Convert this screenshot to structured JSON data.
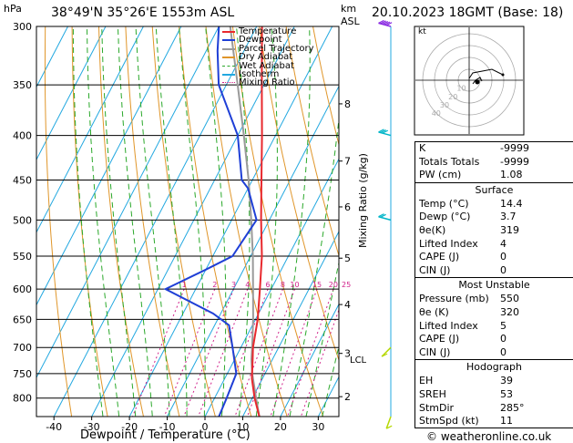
{
  "header": {
    "pressure_unit": "hPa",
    "location": "38°49'N  35°26'E  1553m  ASL",
    "height_unit_top": "km",
    "height_unit_bottom": "ASL",
    "datetime": "20.10.2023  18GMT  (Base: 18)"
  },
  "chart_data": {
    "type": "skew-T log-P sounding",
    "xlabel": "Dewpoint / Temperature (°C)",
    "mixing_ratio_label": "Mixing Ratio (g/kg)",
    "temperature_ticks": [
      -40,
      -30,
      -20,
      -10,
      0,
      10,
      20,
      30
    ],
    "xlim_at_bottom": [
      -45,
      35
    ],
    "pressure_levels": [
      300,
      350,
      400,
      450,
      500,
      550,
      600,
      650,
      700,
      750,
      800
    ],
    "plim": [
      300,
      840
    ],
    "height_km_ticks": [
      {
        "label": "8",
        "p": 368
      },
      {
        "label": "7",
        "p": 428
      },
      {
        "label": "6",
        "p": 483
      },
      {
        "label": "5",
        "p": 553
      },
      {
        "label": "4",
        "p": 625
      },
      {
        "label": "3",
        "p": 711
      },
      {
        "label": "2",
        "p": 797
      }
    ],
    "lcl": {
      "label": "LCL",
      "p": 722
    },
    "mixing_ratio_lines": [
      "1",
      "2",
      "3",
      "4",
      "6",
      "8",
      "10",
      "15",
      "20",
      "25"
    ],
    "legend": [
      {
        "label": "Temperature",
        "color": "#e8282d"
      },
      {
        "label": "Dewpoint",
        "color": "#1f3fd6"
      },
      {
        "label": "Parcel Trajectory",
        "color": "#9a9a9a"
      },
      {
        "label": "Dry Adiabat",
        "color": "#e0962a"
      },
      {
        "label": "Wet Adiabat",
        "color": "#2aa82a"
      },
      {
        "label": "Isotherm",
        "color": "#22a8e0"
      },
      {
        "label": "Mixing Ratio",
        "color": "#d0208a"
      }
    ],
    "temperature_profile": [
      [
        840,
        14.4
      ],
      [
        800,
        10.6
      ],
      [
        760,
        7.2
      ],
      [
        720,
        4.6
      ],
      [
        700,
        3.2
      ],
      [
        650,
        0.6
      ],
      [
        600,
        -3.0
      ],
      [
        550,
        -7.0
      ],
      [
        500,
        -12.2
      ],
      [
        450,
        -17.6
      ],
      [
        400,
        -23.6
      ],
      [
        350,
        -30.6
      ],
      [
        300,
        -38.6
      ]
    ],
    "dewpoint_profile": [
      [
        840,
        3.7
      ],
      [
        800,
        3.2
      ],
      [
        750,
        2.4
      ],
      [
        700,
        -2.2
      ],
      [
        660,
        -6.2
      ],
      [
        640,
        -12.0
      ],
      [
        600,
        -28.0
      ],
      [
        570,
        -20.0
      ],
      [
        550,
        -14.8
      ],
      [
        500,
        -13.4
      ],
      [
        460,
        -20.0
      ],
      [
        450,
        -22.8
      ],
      [
        400,
        -30.0
      ],
      [
        350,
        -42.0
      ],
      [
        320,
        -47.0
      ],
      [
        300,
        -50.0
      ]
    ],
    "parcel_profile": [
      [
        840,
        14.4
      ],
      [
        800,
        11.0
      ],
      [
        750,
        6.6
      ],
      [
        722,
        4.4
      ],
      [
        700,
        3.0
      ],
      [
        650,
        -0.6
      ],
      [
        600,
        -4.8
      ],
      [
        550,
        -9.4
      ],
      [
        500,
        -14.8
      ],
      [
        450,
        -21.0
      ],
      [
        400,
        -28.4
      ],
      [
        350,
        -37.0
      ],
      [
        300,
        -47.0
      ]
    ],
    "wind_barbs": [
      {
        "p": 300,
        "dir": 285,
        "speed_kt": 60
      },
      {
        "p": 400,
        "dir": 285,
        "speed_kt": 25
      },
      {
        "p": 500,
        "dir": 285,
        "speed_kt": 20
      },
      {
        "p": 700,
        "dir": 225,
        "speed_kt": 10
      },
      {
        "p": 840,
        "dir": 200,
        "speed_kt": 5
      }
    ]
  },
  "hodograph": {
    "unit_label": "kt",
    "ring_labels": [
      "10",
      "20",
      "30",
      "40"
    ]
  },
  "indices": {
    "rows": [
      {
        "key": "K",
        "value": "-9999"
      },
      {
        "key": "Totals Totals",
        "value": "-9999"
      },
      {
        "key": "PW (cm)",
        "value": "1.08"
      }
    ]
  },
  "surface": {
    "title": "Surface",
    "rows": [
      {
        "key": "Temp (°C)",
        "value": "14.4"
      },
      {
        "key": "Dewp (°C)",
        "value": "3.7"
      },
      {
        "key": "θe(K)",
        "value": "319"
      },
      {
        "key": "Lifted Index",
        "value": "4"
      },
      {
        "key": "CAPE (J)",
        "value": "0"
      },
      {
        "key": "CIN (J)",
        "value": "0"
      }
    ]
  },
  "most_unstable": {
    "title": "Most Unstable",
    "rows": [
      {
        "key": "Pressure (mb)",
        "value": "550"
      },
      {
        "key": "θe (K)",
        "value": "320"
      },
      {
        "key": "Lifted Index",
        "value": "5"
      },
      {
        "key": "CAPE (J)",
        "value": "0"
      },
      {
        "key": "CIN (J)",
        "value": "0"
      }
    ]
  },
  "hodograph_table": {
    "title": "Hodograph",
    "rows": [
      {
        "key": "EH",
        "value": "39"
      },
      {
        "key": "SREH",
        "value": "53"
      },
      {
        "key": "StmDir",
        "value": "285°"
      },
      {
        "key": "StmSpd (kt)",
        "value": "11"
      }
    ]
  },
  "footer": {
    "copyright": "© weatheronline.co.uk"
  }
}
